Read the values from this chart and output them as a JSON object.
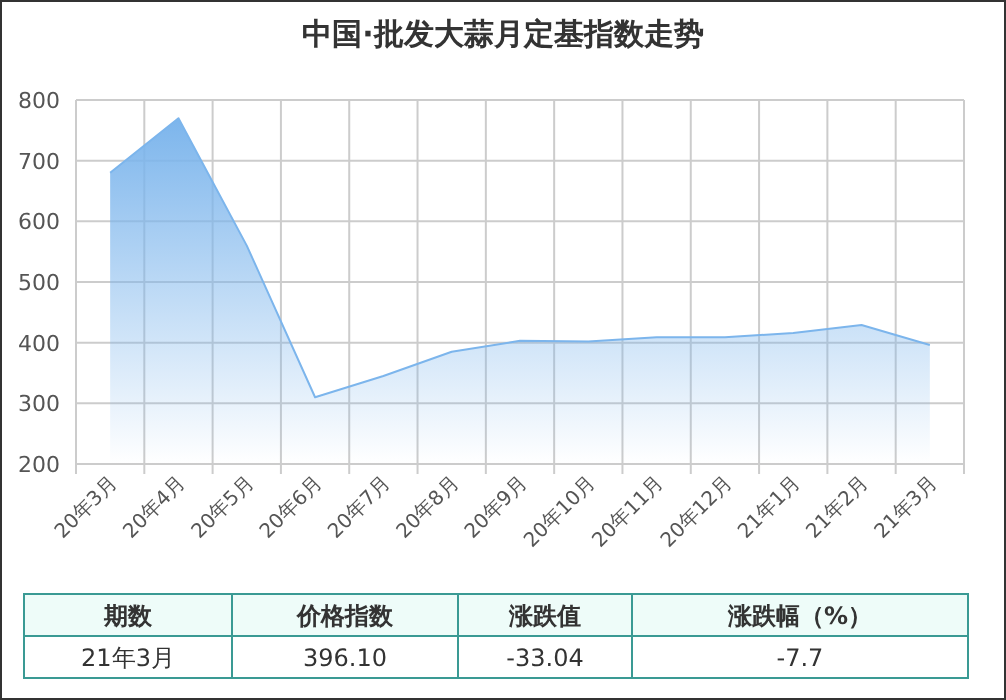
{
  "chart_data": {
    "type": "area",
    "title": "中国·批发大蒜月定基指数走势",
    "categories": [
      "20年3月",
      "20年4月",
      "20年5月",
      "20年6月",
      "20年7月",
      "20年8月",
      "20年9月",
      "20年10月",
      "20年11月",
      "20年12月",
      "21年1月",
      "21年2月",
      "21年3月"
    ],
    "series": [
      {
        "color": "#7cb5ec",
        "values": [
          680,
          770,
          560,
          310,
          345,
          385,
          403,
          402,
          409,
          409,
          416,
          429,
          396.1
        ]
      }
    ],
    "ylim": [
      200,
      800
    ],
    "yticks": [
      200,
      300,
      400,
      500,
      600,
      700,
      800
    ],
    "grid": true,
    "annotations": [
      "期数",
      "价格指数",
      "涨跌值",
      "涨跌幅（%）",
      "21年3月",
      "396.10",
      "-33.04",
      "-7.7"
    ]
  }
}
